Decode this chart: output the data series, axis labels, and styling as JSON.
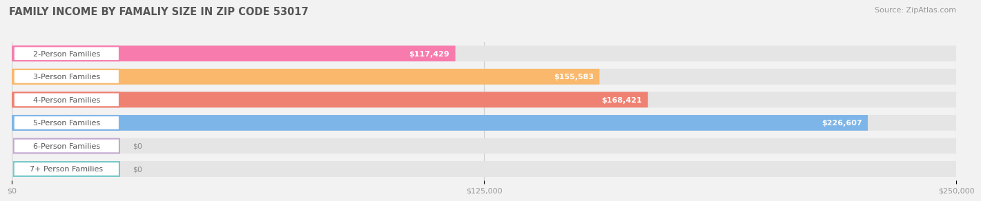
{
  "title": "FAMILY INCOME BY FAMALIY SIZE IN ZIP CODE 53017",
  "source": "Source: ZipAtlas.com",
  "categories": [
    "2-Person Families",
    "3-Person Families",
    "4-Person Families",
    "5-Person Families",
    "6-Person Families",
    "7+ Person Families"
  ],
  "values": [
    117429,
    155583,
    168421,
    226607,
    0,
    0
  ],
  "bar_colors": [
    "#F87BAD",
    "#F9B86B",
    "#EF8172",
    "#7EB5E8",
    "#C3A8D1",
    "#72C9C9"
  ],
  "value_labels": [
    "$117,429",
    "$155,583",
    "$168,421",
    "$226,607",
    "$0",
    "$0"
  ],
  "xlim": [
    0,
    250000
  ],
  "xticks": [
    0,
    125000,
    250000
  ],
  "xticklabels": [
    "$0",
    "$125,000",
    "$250,000"
  ],
  "background_color": "#f2f2f2",
  "bar_bg_color": "#e5e5e5",
  "title_fontsize": 10.5,
  "source_fontsize": 8,
  "label_fontsize": 8,
  "value_fontsize": 8
}
